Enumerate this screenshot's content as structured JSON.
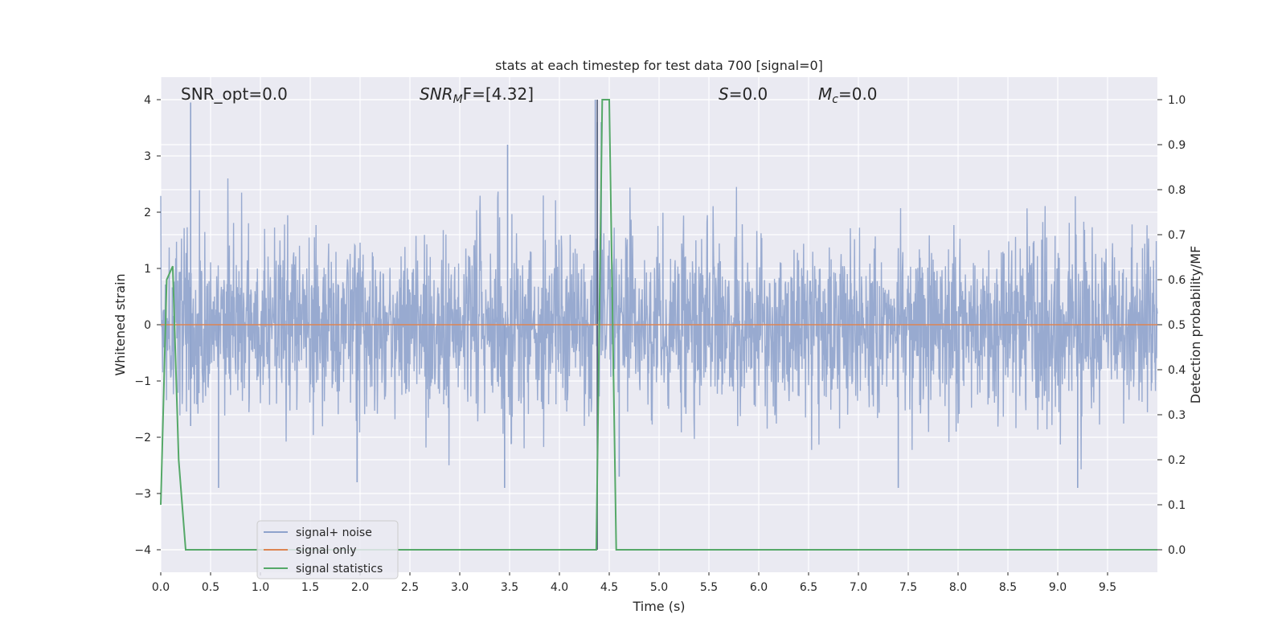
{
  "chart_data": {
    "type": "line",
    "title": "stats at each timestep for test data 700 [signal=0]",
    "xlabel": "Time (s)",
    "ylabel": "Whitened strain",
    "y2label": "Detection probability/MF",
    "xlim": [
      0,
      10
    ],
    "ylim": [
      -4.4,
      4.4
    ],
    "y2lim": [
      -0.05,
      1.05
    ],
    "xticks": [
      "0.0",
      "0.5",
      "1.0",
      "1.5",
      "2.0",
      "2.5",
      "3.0",
      "3.5",
      "4.0",
      "4.5",
      "5.0",
      "5.5",
      "6.0",
      "6.5",
      "7.0",
      "7.5",
      "8.0",
      "8.5",
      "9.0",
      "9.5"
    ],
    "yticks": [
      "4",
      "3",
      "2",
      "1",
      "0",
      "−1",
      "−2",
      "−3",
      "−4"
    ],
    "y2ticks": [
      "1.0",
      "0.9",
      "0.8",
      "0.7",
      "0.6",
      "0.5",
      "0.4",
      "0.3",
      "0.2",
      "0.1",
      "0.0"
    ],
    "grid": true,
    "legend_position": "lower-left",
    "annotations": {
      "snr_opt": "SNR_opt=0.0",
      "snr_mf_sym": "SNR",
      "snr_mf_sub": "M",
      "snr_mf_rest": "F=[4.32]",
      "s_sym": "S",
      "s_rest": "=0.0",
      "mc_sym": "M",
      "mc_sub": "c",
      "mc_rest": "=0.0"
    },
    "series": [
      {
        "name": "signal+ noise",
        "color": "#8fa3cc",
        "axis": "left",
        "description": "noise band",
        "spikes": [
          {
            "x": 0.3,
            "y": 3.95
          },
          {
            "x": 0.3,
            "y": -1.8
          },
          {
            "x": 3.48,
            "y": 3.2
          },
          {
            "x": 3.45,
            "y": -2.9
          },
          {
            "x": 4.38,
            "y": 3.6
          },
          {
            "x": 4.42,
            "y": 3.6
          },
          {
            "x": 4.36,
            "y": 4.0
          },
          {
            "x": 4.6,
            "y": -2.7
          },
          {
            "x": 0.58,
            "y": -2.9
          },
          {
            "x": 1.97,
            "y": -2.8
          },
          {
            "x": 7.4,
            "y": -2.9
          },
          {
            "x": 9.2,
            "y": -2.9
          }
        ]
      },
      {
        "name": "signal only",
        "color": "#dd8452",
        "axis": "left",
        "x": [
          0,
          10
        ],
        "y": [
          0,
          0
        ]
      },
      {
        "name": "signal statistics",
        "color": "#55a868",
        "axis": "right",
        "x": [
          0.0,
          0.06,
          0.12,
          0.18,
          0.25,
          4.3,
          4.37,
          4.43,
          4.5,
          4.57,
          4.63,
          10.0
        ],
        "y": [
          0.1,
          0.6,
          0.63,
          0.2,
          0.0,
          0.0,
          0.0,
          1.0,
          1.0,
          0.0,
          0.0,
          0.0
        ]
      }
    ]
  }
}
